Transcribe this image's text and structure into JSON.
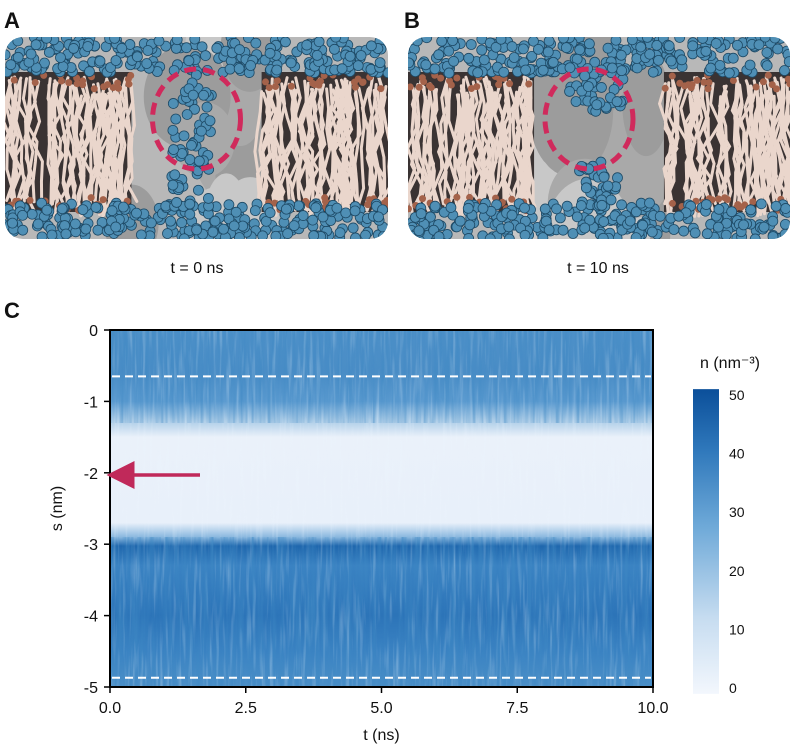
{
  "panels": [
    {
      "label": "A",
      "caption": "t = 0 ns"
    },
    {
      "label": "B",
      "caption": "t = 10 ns"
    }
  ],
  "chart_data": {
    "type": "heatmap",
    "panel_label": "C",
    "xlabel": "t  (ns)",
    "ylabel": "s  (nm)",
    "xlim": [
      0,
      10
    ],
    "ylim": [
      -5,
      0
    ],
    "xticks": [
      {
        "value": 0,
        "label": "0.0"
      },
      {
        "value": 2.5,
        "label": "2.5"
      },
      {
        "value": 5,
        "label": "5.0"
      },
      {
        "value": 7.5,
        "label": "7.5"
      },
      {
        "value": 10,
        "label": "10.0"
      }
    ],
    "yticks": [
      0,
      -1,
      -2,
      -3,
      -4,
      -5
    ],
    "hlines": [
      -0.65,
      -4.87
    ],
    "colorbar_label": "n  (nm⁻³)",
    "clim": [
      -1,
      51
    ],
    "colorbar_ticks": [
      0,
      10,
      20,
      30,
      40,
      50
    ]
  }
}
